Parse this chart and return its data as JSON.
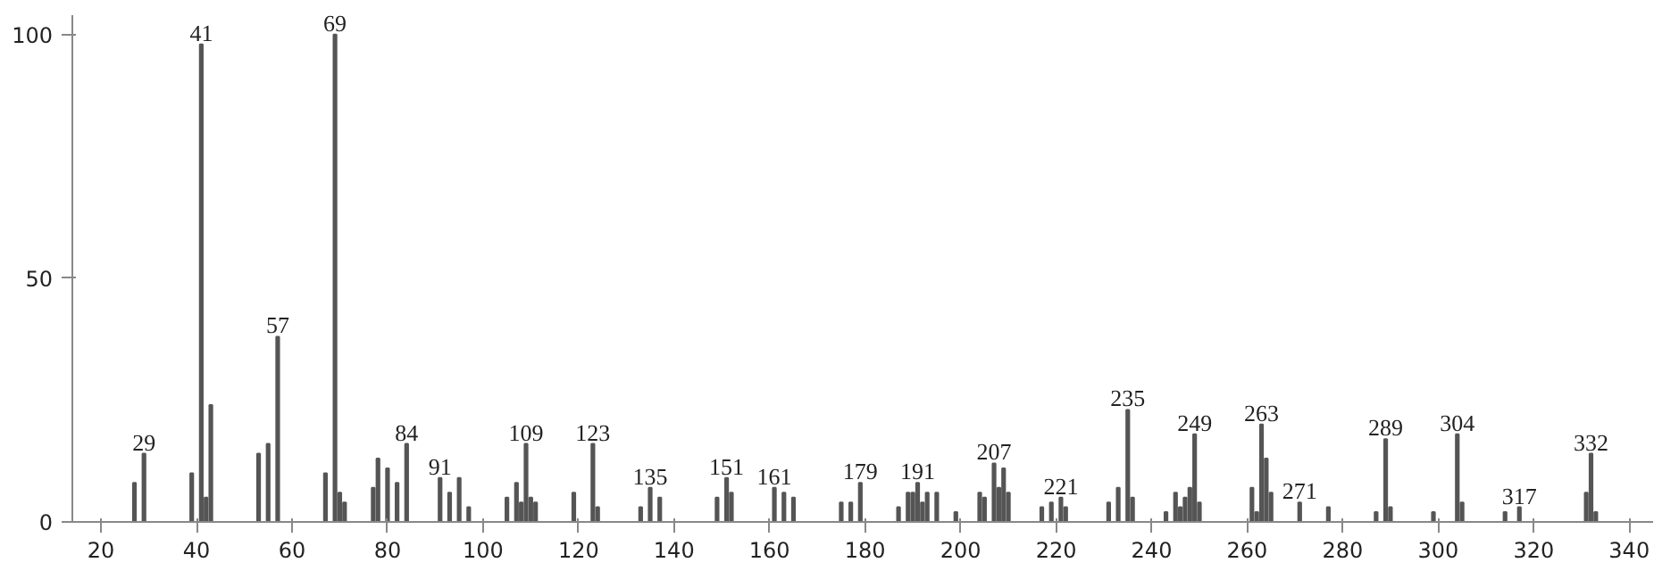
{
  "chart_data": {
    "type": "bar",
    "color": "#555555",
    "x": [
      27,
      29,
      39,
      41,
      42,
      43,
      53,
      55,
      57,
      67,
      69,
      70,
      71,
      77,
      78,
      80,
      82,
      84,
      91,
      93,
      95,
      97,
      105,
      107,
      108,
      109,
      110,
      111,
      119,
      123,
      124,
      133,
      135,
      137,
      149,
      151,
      152,
      161,
      163,
      165,
      175,
      177,
      179,
      187,
      189,
      190,
      191,
      192,
      193,
      195,
      199,
      204,
      205,
      207,
      208,
      209,
      210,
      217,
      219,
      221,
      222,
      231,
      233,
      235,
      236,
      243,
      245,
      246,
      247,
      248,
      249,
      250,
      261,
      262,
      263,
      264,
      265,
      271,
      277,
      287,
      289,
      290,
      299,
      304,
      305,
      314,
      317,
      331,
      332,
      333
    ],
    "values": [
      8,
      14,
      10,
      98,
      5,
      24,
      14,
      16,
      38,
      10,
      100,
      6,
      4,
      7,
      13,
      11,
      8,
      16,
      9,
      6,
      9,
      3,
      5,
      8,
      4,
      16,
      5,
      4,
      6,
      16,
      3,
      3,
      7,
      5,
      5,
      9,
      6,
      7,
      6,
      5,
      4,
      4,
      8,
      3,
      6,
      6,
      8,
      4,
      6,
      6,
      2,
      6,
      5,
      12,
      7,
      11,
      6,
      3,
      4,
      5,
      3,
      4,
      7,
      23,
      5,
      2,
      6,
      3,
      5,
      7,
      18,
      4,
      7,
      2,
      20,
      13,
      6,
      4,
      3,
      2,
      17,
      3,
      2,
      18,
      4,
      2,
      3,
      6,
      14,
      2
    ],
    "annotations": [
      {
        "text": "29",
        "x": 29,
        "y": 14
      },
      {
        "text": "41",
        "x": 41,
        "y": 98
      },
      {
        "text": "57",
        "x": 57,
        "y": 38
      },
      {
        "text": "69",
        "x": 69,
        "y": 100
      },
      {
        "text": "84",
        "x": 84,
        "y": 16
      },
      {
        "text": "91",
        "x": 91,
        "y": 9
      },
      {
        "text": "109",
        "x": 109,
        "y": 16
      },
      {
        "text": "123",
        "x": 123,
        "y": 16
      },
      {
        "text": "135",
        "x": 135,
        "y": 7
      },
      {
        "text": "151",
        "x": 151,
        "y": 9
      },
      {
        "text": "161",
        "x": 161,
        "y": 7
      },
      {
        "text": "179",
        "x": 179,
        "y": 8
      },
      {
        "text": "191",
        "x": 191,
        "y": 8
      },
      {
        "text": "207",
        "x": 207,
        "y": 12
      },
      {
        "text": "221",
        "x": 221,
        "y": 5
      },
      {
        "text": "235",
        "x": 235,
        "y": 23
      },
      {
        "text": "249",
        "x": 249,
        "y": 18
      },
      {
        "text": "263",
        "x": 263,
        "y": 20
      },
      {
        "text": "271",
        "x": 271,
        "y": 4
      },
      {
        "text": "289",
        "x": 289,
        "y": 17
      },
      {
        "text": "304",
        "x": 304,
        "y": 18
      },
      {
        "text": "317",
        "x": 317,
        "y": 3
      },
      {
        "text": "332",
        "x": 332,
        "y": 14
      }
    ],
    "xlim": [
      14,
      345
    ],
    "xticks": [
      20,
      40,
      60,
      80,
      100,
      120,
      140,
      160,
      180,
      200,
      220,
      240,
      260,
      280,
      300,
      320,
      340
    ],
    "ylim": [
      0,
      104
    ],
    "yticks": [
      0,
      50,
      100
    ],
    "grid": false
  }
}
